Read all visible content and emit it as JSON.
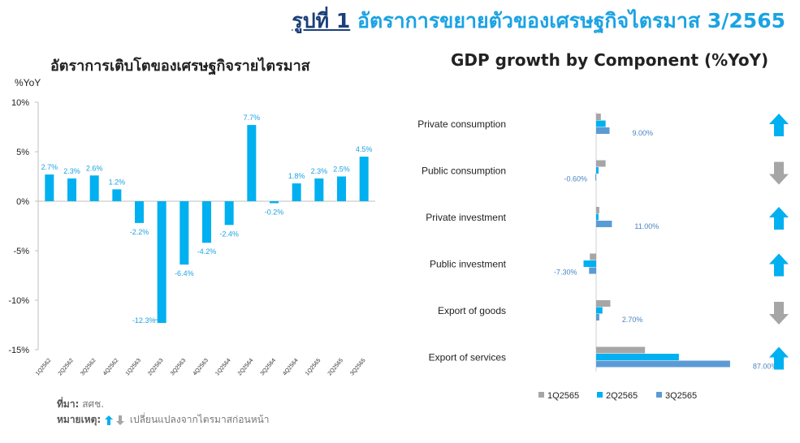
{
  "header": {
    "figure_label": "รูปที่ 1",
    "title": "อัตราการขยายตัวของเศรษฐกิจไตรมาส 3/2565"
  },
  "left_chart_title": "อัตราการเติบโตของเศรษฐกิจรายไตรมาส",
  "right_chart_title": "GDP growth by Component  (%YoY)",
  "footer": {
    "source_label": "ที่มา:",
    "source_value": "สศช.",
    "note_label": "หมายเหตุ:",
    "note_value": "เปลี่ยนแปลงจากไตรมาสก่อนหน้า"
  },
  "colors": {
    "accent": "#1ba3e3",
    "title_dark": "#1b3f7a",
    "bar": "#00b0f0",
    "grey": "#a6a6a6",
    "s3": "#5b9bd5",
    "up": "#00b0f0",
    "down": "#a6a6a6"
  },
  "chart_data": [
    {
      "type": "bar",
      "title": "อัตราการเติบโตของเศรษฐกิจรายไตรมาส",
      "ylabel": "%YoY",
      "ylim": [
        -15,
        10
      ],
      "yticks": [
        "10%",
        "5%",
        "0%",
        "-5%",
        "-10%",
        "-15%"
      ],
      "categories": [
        "1Q2562",
        "2Q2562",
        "3Q2562",
        "4Q2562",
        "1Q2563",
        "2Q2563",
        "3Q2563",
        "4Q2563",
        "1Q2564",
        "2Q2564",
        "3Q2564",
        "4Q2564",
        "1Q2565",
        "2Q2565",
        "3Q2565"
      ],
      "values": [
        2.7,
        2.3,
        2.6,
        1.2,
        -2.2,
        -12.3,
        -6.4,
        -4.2,
        -2.4,
        7.7,
        -0.2,
        1.8,
        2.3,
        2.5,
        4.5
      ],
      "labels": [
        "2.7%",
        "2.3%",
        "2.6%",
        "1.2%",
        "-2.2%",
        "-12.3%",
        "-6.4%",
        "-4.2%",
        "-2.4%",
        "7.7%",
        "-0.2%",
        "1.8%",
        "2.3%",
        "2.5%",
        "4.5%"
      ]
    },
    {
      "type": "bar",
      "orientation": "horizontal",
      "title": "GDP growth by Component  (%YoY)",
      "categories": [
        "Private consumption",
        "Public consumption",
        "Private investment",
        "Public investment",
        "Export of goods",
        "Export of services"
      ],
      "series": [
        {
          "name": "1Q2565",
          "values": [
            0.6,
            1.2,
            0.4,
            -0.8,
            1.8,
            6.2
          ]
        },
        {
          "name": "2Q2565",
          "values": [
            1.2,
            0.3,
            0.3,
            -1.6,
            0.8,
            10.5
          ]
        },
        {
          "name": "3Q2565",
          "values": [
            1.7,
            -0.1,
            2.0,
            -0.9,
            0.4,
            17.0
          ]
        }
      ],
      "value_labels": [
        "9.00%",
        "-0.60%",
        "11.00%",
        "-7.30%",
        "2.70%",
        "87.00%"
      ],
      "direction": [
        "up",
        "down",
        "up",
        "up",
        "down",
        "up"
      ],
      "legend_position": "bottom"
    }
  ]
}
